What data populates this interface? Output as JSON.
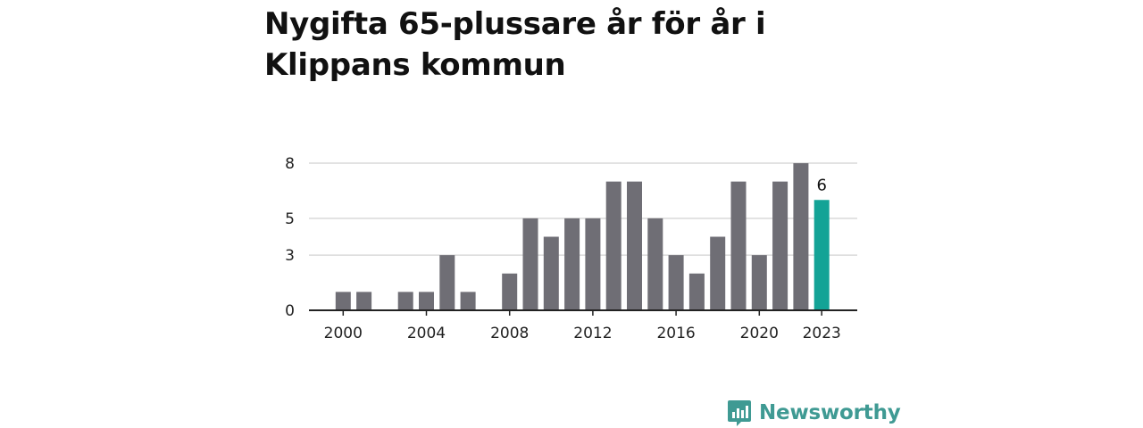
{
  "title": "Nygifta 65-plussare år för år i Klippans kommun",
  "brand": {
    "name": "Newsworthy",
    "icon": "newsworthy-logo-icon",
    "color": "#3f9a93"
  },
  "chart_data": {
    "type": "bar",
    "title": "Nygifta 65-plussare år för år i Klippans kommun",
    "xlabel": "",
    "ylabel": "",
    "x": [
      1999,
      2000,
      2001,
      2002,
      2003,
      2004,
      2005,
      2006,
      2007,
      2008,
      2009,
      2010,
      2011,
      2012,
      2013,
      2014,
      2015,
      2016,
      2017,
      2018,
      2019,
      2020,
      2021,
      2022,
      2023
    ],
    "values": [
      0,
      1,
      1,
      0,
      1,
      1,
      3,
      1,
      0,
      2,
      5,
      4,
      5,
      5,
      7,
      7,
      5,
      3,
      2,
      4,
      7,
      3,
      7,
      8,
      6
    ],
    "ylim": [
      0,
      8
    ],
    "yticks": [
      0,
      3,
      5,
      8
    ],
    "xticks": [
      2000,
      2004,
      2008,
      2012,
      2016,
      2020,
      2023
    ],
    "highlight": {
      "x": 2023,
      "label": "6"
    },
    "grid": true,
    "colors": {
      "bar": "#6f6e75",
      "highlight": "#13a396",
      "grid": "#d9d9d9",
      "axis": "#222222"
    }
  }
}
